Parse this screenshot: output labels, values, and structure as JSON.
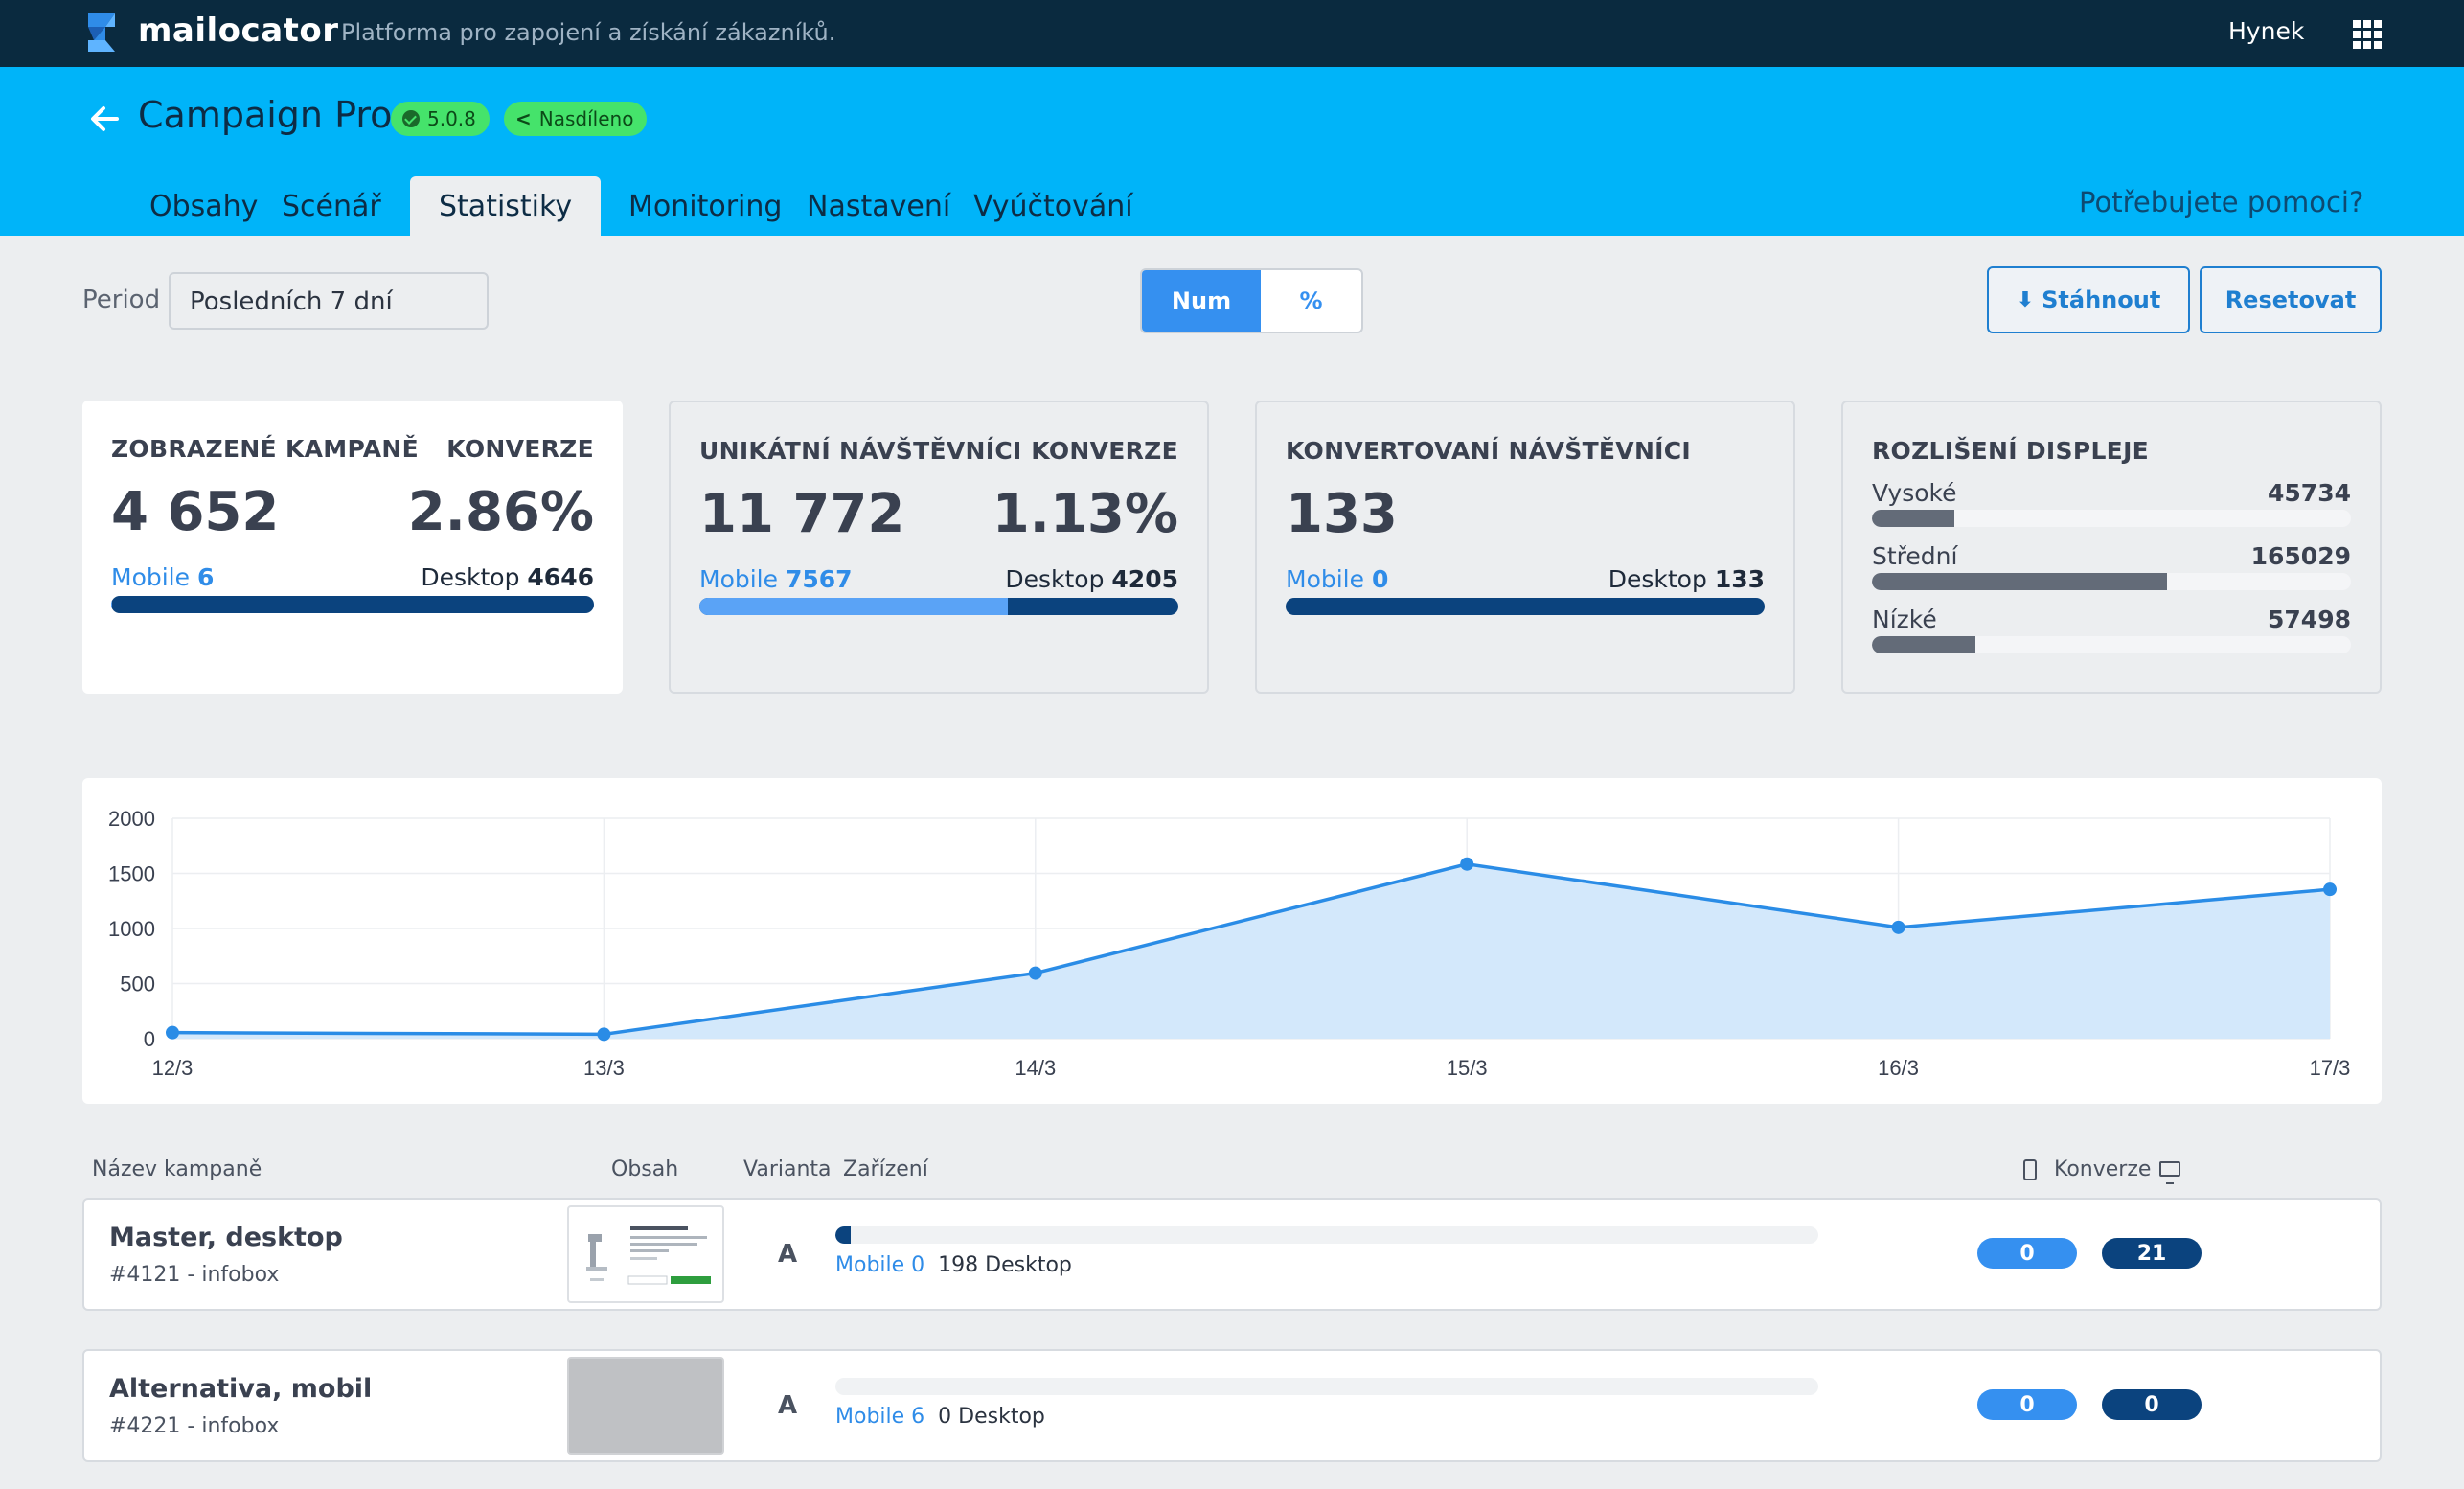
{
  "app": {
    "brand": "mailocator",
    "tagline": "Platforma pro zapojení a získání zákazníků.",
    "user": "Hynek"
  },
  "header": {
    "title": "Campaign Pro",
    "version": "5.0.8",
    "shared": "Nasdíleno",
    "help": "Potřebujete pomoci?",
    "tabs": [
      {
        "label": "Obsahy"
      },
      {
        "label": "Scénář"
      },
      {
        "label": "Statistiky"
      },
      {
        "label": "Monitoring"
      },
      {
        "label": "Nastavení"
      },
      {
        "label": "Vyúčtování"
      }
    ],
    "active_tab": "Statistiky"
  },
  "controls": {
    "period_label": "Period",
    "period_value": "Posledních 7 dní",
    "toggle_num": "Num",
    "toggle_pct": "%",
    "download": "Stáhnout",
    "reset": "Resetovat"
  },
  "cards": {
    "shown": {
      "label": "ZOBRAZENÉ KAMPANĚ",
      "conv_label": "KONVERZE",
      "value": "4 652",
      "conv": "2.86%",
      "mobile_label": "Mobile",
      "mobile": "6",
      "desktop_label": "Desktop",
      "desktop": "4646",
      "mobile_share": 0.0013
    },
    "unique": {
      "label": "UNIKÁTNÍ NÁVŠTĚVNÍCI",
      "conv_label": "KONVERZE",
      "value": "11 772",
      "conv": "1.13%",
      "mobile_label": "Mobile",
      "mobile": "7567",
      "desktop_label": "Desktop",
      "desktop": "4205",
      "mobile_share": 0.643
    },
    "converted": {
      "label": "KONVERTOVANÍ NÁVŠTĚVNÍCI",
      "value": "133",
      "mobile_label": "Mobile",
      "mobile": "0",
      "desktop_label": "Desktop",
      "desktop": "133",
      "mobile_share": 0
    },
    "resolution": {
      "label": "ROZLIŠENÍ DISPLEJE",
      "rows": [
        {
          "label": "Vysoké",
          "value": "45734",
          "share": 0.172
        },
        {
          "label": "Střední",
          "value": "165029",
          "share": 0.616
        },
        {
          "label": "Nízké",
          "value": "57498",
          "share": 0.215
        }
      ]
    }
  },
  "chart_data": {
    "type": "area",
    "x": [
      "12/3",
      "13/3",
      "14/3",
      "15/3",
      "16/3",
      "17/3"
    ],
    "series": [
      {
        "values": [
          55,
          40,
          595,
          1585,
          1010,
          1355
        ]
      }
    ],
    "yticks": [
      0,
      500,
      1000,
      1500,
      2000
    ],
    "ylim": [
      0,
      2000
    ],
    "grid": true,
    "line_color": "#2a8ce6",
    "fill_color": "#d3e8fb"
  },
  "table": {
    "headers": {
      "name": "Název kampaně",
      "content": "Obsah",
      "variant": "Varianta",
      "device": "Zařízení",
      "conversion": "Konverze"
    },
    "rows": [
      {
        "name": "Master, desktop",
        "id": "#4121 - infobox",
        "variant": "A",
        "mobile_label": "Mobile 0",
        "desktop_label": "198 Desktop",
        "desktop_share": 0.016,
        "conv_mobile": "0",
        "conv_desktop": "21",
        "thumb": "image"
      },
      {
        "name": "Alternativa, mobil",
        "id": "#4221 - infobox",
        "variant": "A",
        "mobile_label": "Mobile 6",
        "desktop_label": "0 Desktop",
        "desktop_share": 0,
        "conv_mobile": "0",
        "conv_desktop": "0",
        "thumb": "empty"
      }
    ]
  }
}
